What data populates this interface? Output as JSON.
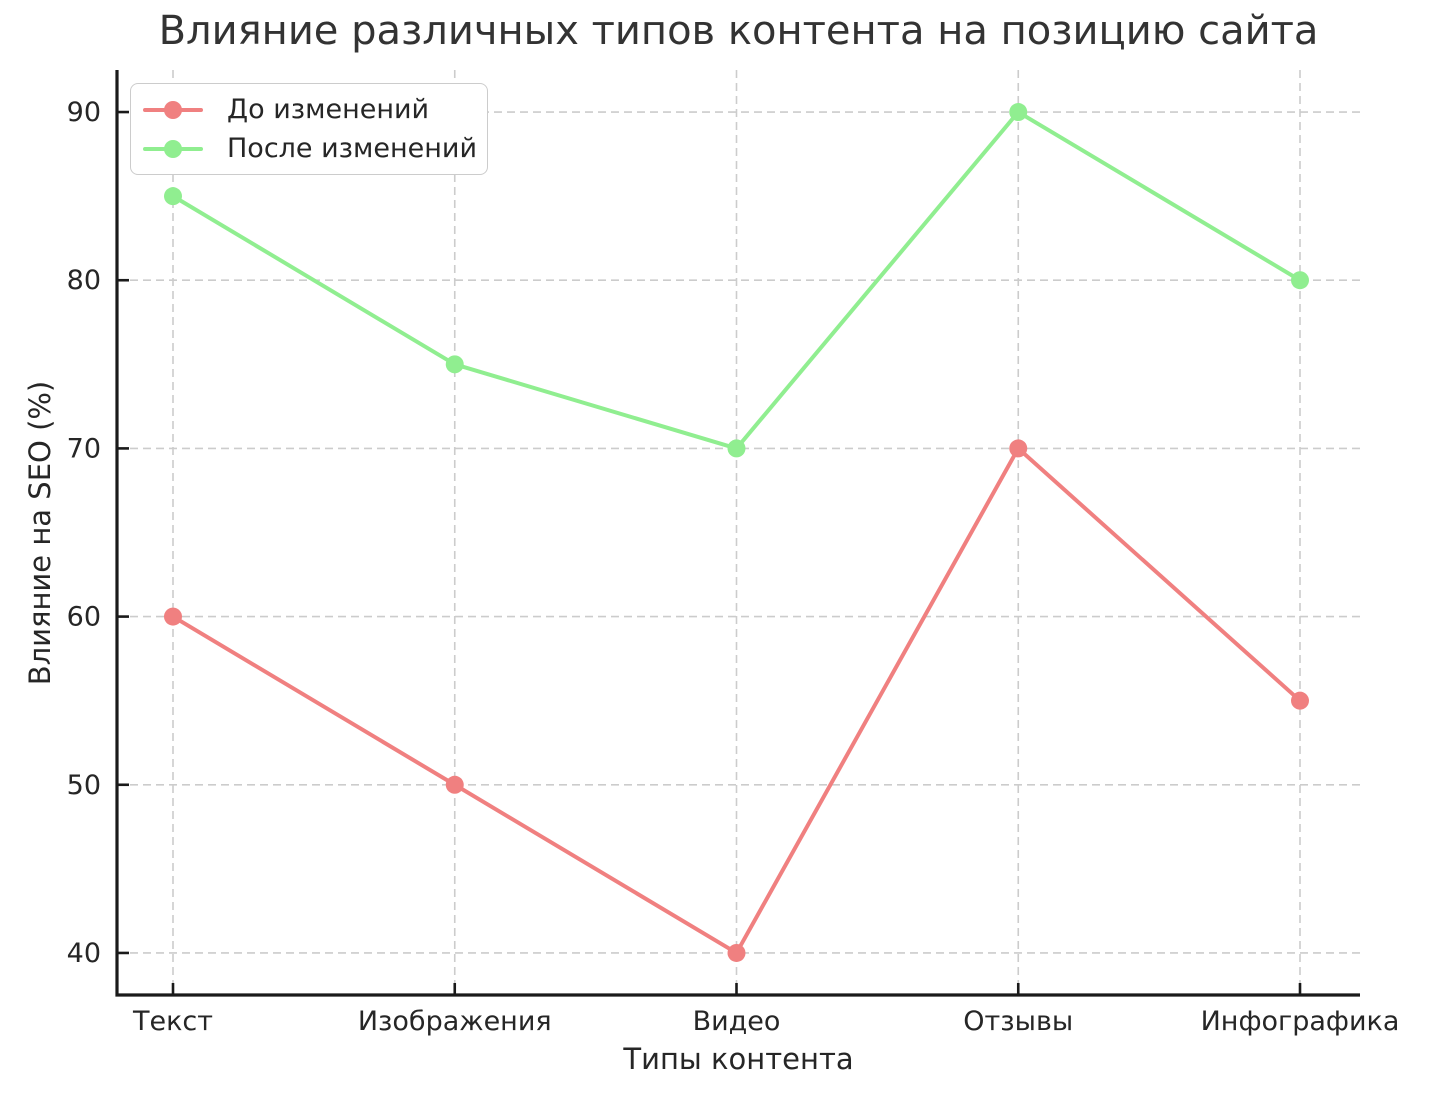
{
  "title": "Влияние различных типов контента на позицию сайта",
  "chart_data": {
    "type": "line",
    "categories": [
      "Текст",
      "Изображения",
      "Видео",
      "Отзывы",
      "Инфографика"
    ],
    "series": [
      {
        "name": "До изменений",
        "color": "#F08080",
        "values": [
          60,
          50,
          40,
          70,
          55
        ]
      },
      {
        "name": "После изменений",
        "color": "#90EE90",
        "values": [
          85,
          75,
          70,
          90,
          80
        ]
      }
    ],
    "xlabel": "Типы контента",
    "ylabel": "Влияние на SEO (%)",
    "yticks": [
      40,
      50,
      60,
      70,
      80,
      90
    ],
    "ylim": [
      37.5,
      92.5
    ],
    "grid": true,
    "grid_style": "dashed",
    "legend_position": "upper left",
    "marker": "circle"
  },
  "colors": {
    "background": "#ffffff",
    "text": "#262626",
    "grid": "#cccccc",
    "axis": "#1a1a1a"
  }
}
